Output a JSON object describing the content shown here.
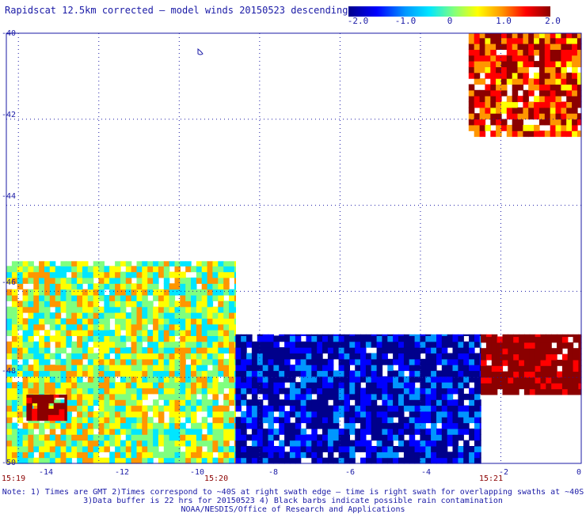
{
  "title": "Rapidscat 12.5km corrected — model winds 20150523 descending",
  "colorbar": {
    "ticks": [
      "-2.0",
      "-1.0",
      "0",
      "1.0",
      "2.0"
    ],
    "tick_values": [
      -2.0,
      -1.0,
      0,
      1.0,
      2.0
    ]
  },
  "y_tick_labels": [
    "-40",
    "-42",
    "-44",
    "-46",
    "-48",
    "-50"
  ],
  "x_tick_labels": [
    "-14",
    "-12",
    "-10",
    "-8",
    "-6",
    "-4",
    "-2",
    "0"
  ],
  "time_labels": [
    "15:19",
    "15:20",
    "15:21"
  ],
  "notes": [
    "Note: 1) Times are GMT 2)Times correspond to ~40S at right swath edge — time is right swath for overlapping swaths at ~40S",
    "3)Data buffer is 22 hrs for 20150523 4) Black barbs indicate possible rain contamination",
    "NOAA/NESDIS/Office of Research and Applications"
  ],
  "chart_data": {
    "type": "heatmap",
    "title": "Rapidscat 12.5km corrected — model winds 20150523 descending",
    "xlim": [
      -14.3,
      0
    ],
    "ylim": [
      -50,
      -40
    ],
    "x_ticks": [
      -14,
      -12,
      -10,
      -8,
      -6,
      -4,
      -2,
      0
    ],
    "y_ticks": [
      -40,
      -42,
      -44,
      -46,
      -48,
      -50
    ],
    "grid": true,
    "colorscale_range": [
      -2.0,
      2.0
    ],
    "colors": [
      "#00008b",
      "#0000ff",
      "#0096ff",
      "#00e6ff",
      "#7fff7f",
      "#ffff00",
      "#ff9600",
      "#ff0000",
      "#8b0000"
    ],
    "approximate_regions": [
      {
        "label": "NE corner swath",
        "lon_range": [
          -2.8,
          0
        ],
        "lat_range": [
          -42.4,
          -40
        ],
        "typical_value": 1.3
      },
      {
        "label": "western swath",
        "lon_range": [
          -14.3,
          -8.6
        ],
        "lat_range": [
          -50,
          -45.3
        ],
        "typical_value": 0.2
      },
      {
        "label": "SW high core",
        "lon_range": [
          -13.8,
          -12.8
        ],
        "lat_range": [
          -49.0,
          -48.4
        ],
        "typical_value": 2.0
      },
      {
        "label": "central low swath",
        "lon_range": [
          -8.6,
          -2.5
        ],
        "lat_range": [
          -50,
          -47.0
        ],
        "typical_value": -1.6
      },
      {
        "label": "SE high block",
        "lon_range": [
          -2.5,
          0
        ],
        "lat_range": [
          -48.4,
          -47.0
        ],
        "typical_value": 2.0
      }
    ]
  }
}
